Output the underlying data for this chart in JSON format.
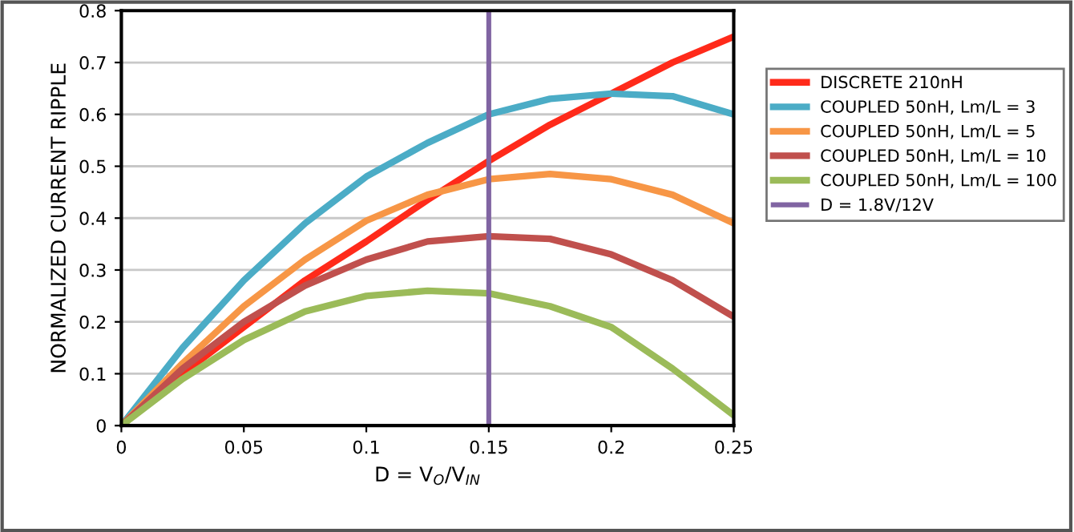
{
  "chart_data": {
    "type": "line",
    "xlabel": "D = V$_{O}$/V$_{IN}$",
    "ylabel": "NORMALIZED CURRENT RIPPLE",
    "x": [
      0,
      0.025,
      0.05,
      0.075,
      0.1,
      0.125,
      0.15,
      0.175,
      0.2,
      0.225,
      0.25
    ],
    "series": [
      {
        "name": "DISCRETE 210nH",
        "color": "#ff2a1a",
        "values": [
          0,
          0.1,
          0.19,
          0.28,
          0.355,
          0.435,
          0.51,
          0.58,
          0.64,
          0.7,
          0.75
        ]
      },
      {
        "name": "COUPLED 50nH, Lm/L = 3",
        "color": "#4bacc6",
        "values": [
          0,
          0.15,
          0.28,
          0.39,
          0.48,
          0.545,
          0.6,
          0.63,
          0.64,
          0.635,
          0.6
        ]
      },
      {
        "name": "COUPLED 50nH, Lm/L = 5",
        "color": "#f79646",
        "values": [
          0,
          0.12,
          0.23,
          0.32,
          0.395,
          0.445,
          0.475,
          0.485,
          0.475,
          0.445,
          0.39
        ]
      },
      {
        "name": "COUPLED 50nH, Lm/L = 10",
        "color": "#c0504d",
        "values": [
          0,
          0.11,
          0.2,
          0.27,
          0.32,
          0.355,
          0.365,
          0.36,
          0.33,
          0.28,
          0.21
        ]
      },
      {
        "name": "COUPLED 50nH, Lm/L = 100",
        "color": "#9bbb59",
        "values": [
          0,
          0.09,
          0.165,
          0.22,
          0.25,
          0.26,
          0.255,
          0.23,
          0.19,
          0.11,
          0.02
        ]
      },
      {
        "name": "D = 1.8V/12V",
        "color": "#8064a2",
        "x": [
          0.15,
          0.15
        ],
        "values": [
          0,
          0.8
        ]
      }
    ],
    "xlim": [
      0,
      0.25
    ],
    "xticks": [
      0,
      0.05,
      0.1,
      0.15,
      0.2,
      0.25
    ],
    "ylim": [
      0,
      0.8
    ],
    "yticks": [
      0,
      0.1,
      0.2,
      0.3,
      0.4,
      0.5,
      0.6,
      0.7,
      0.8
    ],
    "grid": "y",
    "legend": "right",
    "marker": "none",
    "line_style": "solid"
  }
}
